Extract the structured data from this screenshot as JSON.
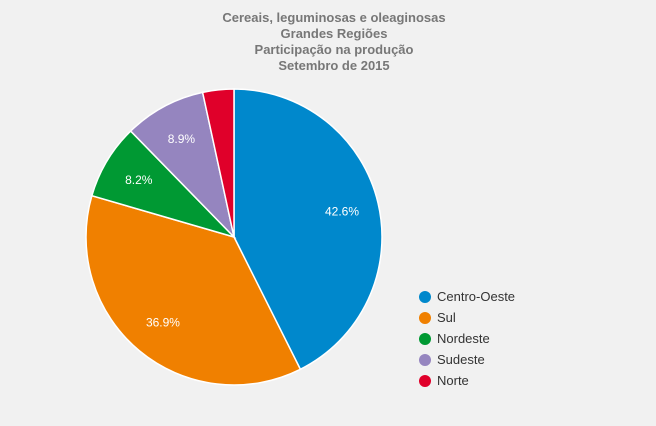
{
  "chart_data": {
    "type": "pie",
    "title": [
      "Cereais, leguminosas e oleaginosas",
      "Grandes Regiões",
      "Participação na produção",
      "Setembro de 2015"
    ],
    "start_angle": "top, clockwise",
    "legend_position": "right",
    "slices": [
      {
        "name": "Centro-Oeste",
        "value": 42.6,
        "label": "42.6%",
        "color": "#0088cc"
      },
      {
        "name": "Sul",
        "value": 36.9,
        "label": "36.9%",
        "color": "#f08000"
      },
      {
        "name": "Nordeste",
        "value": 8.2,
        "label": "8.2%",
        "color": "#009933"
      },
      {
        "name": "Sudeste",
        "value": 8.9,
        "label": "8.9%",
        "color": "#9585bf"
      },
      {
        "name": "Norte",
        "value": 3.4,
        "label": "",
        "color": "#e0002a"
      }
    ]
  }
}
